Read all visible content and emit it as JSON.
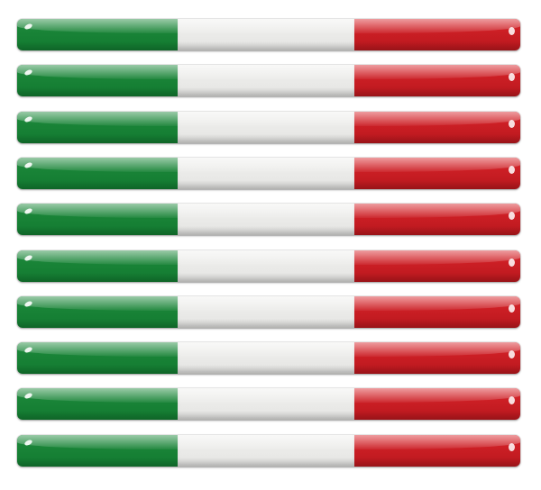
{
  "image": {
    "subject": "italian-flag-stickers",
    "stripe_count": 10
  },
  "colors": {
    "green": "#1e8a3c",
    "green_dark": "#127a30",
    "white": "#f1f1ef",
    "white_shade": "#e4e4e2",
    "red": "#d8242a",
    "red_dark": "#b9171d",
    "background": "#ffffff"
  }
}
